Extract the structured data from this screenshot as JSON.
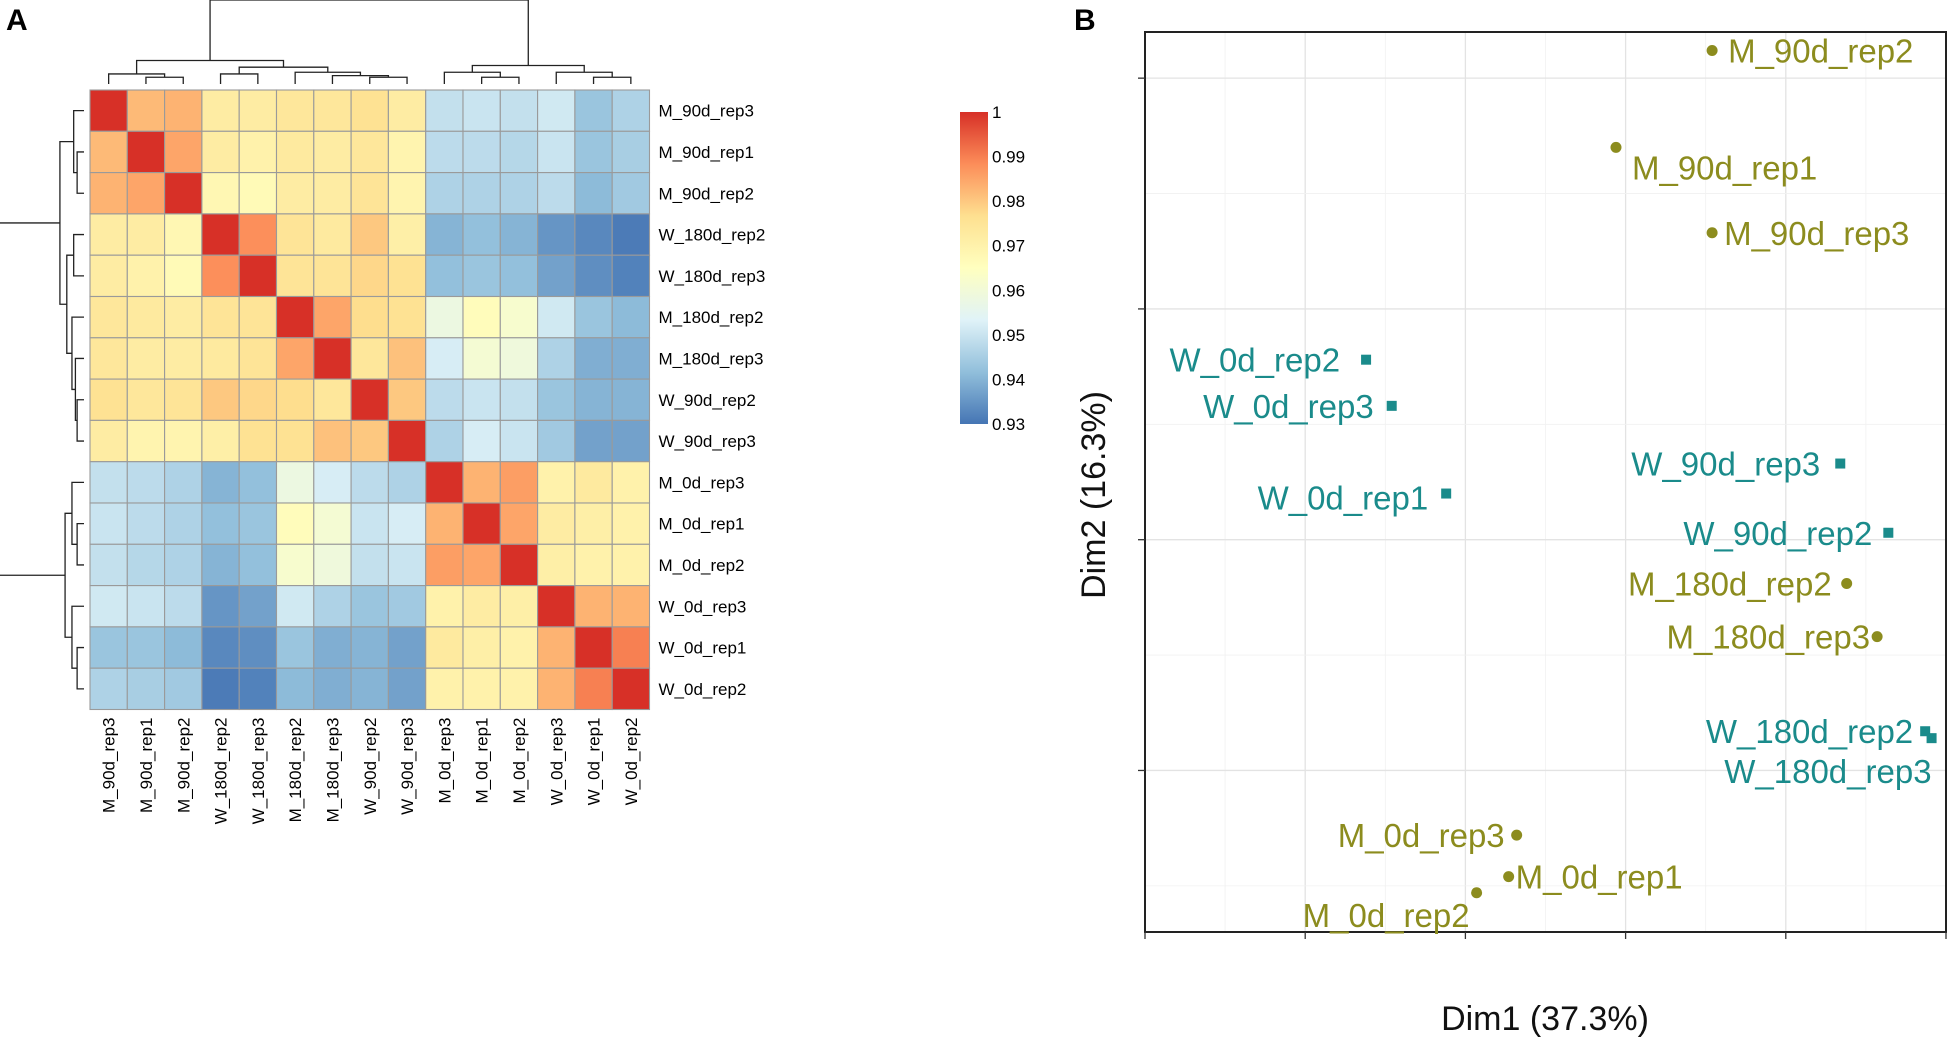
{
  "chart_data": [
    {
      "panel": "A",
      "type": "heatmap",
      "title": "",
      "row_labels": [
        "M_90d_rep3",
        "M_90d_rep1",
        "M_90d_rep2",
        "W_180d_rep2",
        "W_180d_rep3",
        "M_180d_rep2",
        "M_180d_rep3",
        "W_90d_rep2",
        "W_90d_rep3",
        "M_0d_rep3",
        "M_0d_rep1",
        "M_0d_rep2",
        "W_0d_rep3",
        "W_0d_rep1",
        "W_0d_rep2"
      ],
      "col_labels": [
        "M_90d_rep3",
        "M_90d_rep1",
        "M_90d_rep2",
        "W_180d_rep2",
        "W_180d_rep3",
        "M_180d_rep2",
        "M_180d_rep3",
        "W_90d_rep2",
        "W_90d_rep3",
        "M_0d_rep3",
        "M_0d_rep1",
        "M_0d_rep2",
        "W_0d_rep3",
        "W_0d_rep1",
        "W_0d_rep2"
      ],
      "values": [
        [
          1.0,
          0.982,
          0.983,
          0.972,
          0.972,
          0.974,
          0.974,
          0.976,
          0.972,
          0.949,
          0.95,
          0.949,
          0.951,
          0.943,
          0.946
        ],
        [
          0.982,
          1.0,
          0.985,
          0.972,
          0.97,
          0.973,
          0.972,
          0.974,
          0.969,
          0.948,
          0.948,
          0.947,
          0.95,
          0.943,
          0.945
        ],
        [
          0.983,
          0.985,
          1.0,
          0.968,
          0.967,
          0.972,
          0.972,
          0.975,
          0.969,
          0.946,
          0.946,
          0.946,
          0.948,
          0.941,
          0.944
        ],
        [
          0.972,
          0.972,
          0.968,
          1.0,
          0.988,
          0.975,
          0.973,
          0.98,
          0.971,
          0.94,
          0.942,
          0.94,
          0.935,
          0.933,
          0.931
        ],
        [
          0.972,
          0.97,
          0.967,
          0.988,
          1.0,
          0.975,
          0.975,
          0.978,
          0.976,
          0.942,
          0.943,
          0.942,
          0.937,
          0.934,
          0.932
        ],
        [
          0.974,
          0.973,
          0.972,
          0.975,
          0.975,
          1.0,
          0.985,
          0.977,
          0.976,
          0.958,
          0.966,
          0.962,
          0.951,
          0.943,
          0.941
        ],
        [
          0.974,
          0.972,
          0.972,
          0.973,
          0.975,
          0.985,
          1.0,
          0.974,
          0.981,
          0.952,
          0.961,
          0.959,
          0.946,
          0.939,
          0.939
        ],
        [
          0.976,
          0.974,
          0.975,
          0.98,
          0.978,
          0.977,
          0.974,
          1.0,
          0.98,
          0.948,
          0.95,
          0.949,
          0.943,
          0.94,
          0.94
        ],
        [
          0.972,
          0.969,
          0.969,
          0.971,
          0.976,
          0.976,
          0.981,
          0.98,
          1.0,
          0.946,
          0.952,
          0.95,
          0.944,
          0.937,
          0.937
        ],
        [
          0.949,
          0.948,
          0.946,
          0.94,
          0.942,
          0.958,
          0.952,
          0.948,
          0.946,
          1.0,
          0.983,
          0.986,
          0.97,
          0.973,
          0.97
        ],
        [
          0.95,
          0.948,
          0.946,
          0.942,
          0.943,
          0.966,
          0.961,
          0.95,
          0.952,
          0.983,
          1.0,
          0.985,
          0.972,
          0.971,
          0.97
        ],
        [
          0.949,
          0.947,
          0.946,
          0.94,
          0.942,
          0.962,
          0.959,
          0.949,
          0.95,
          0.986,
          0.985,
          1.0,
          0.971,
          0.97,
          0.97
        ],
        [
          0.951,
          0.95,
          0.948,
          0.935,
          0.937,
          0.951,
          0.946,
          0.943,
          0.944,
          0.97,
          0.972,
          0.971,
          1.0,
          0.983,
          0.983
        ],
        [
          0.943,
          0.943,
          0.941,
          0.933,
          0.934,
          0.943,
          0.939,
          0.94,
          0.937,
          0.973,
          0.971,
          0.97,
          0.983,
          1.0,
          0.99
        ],
        [
          0.946,
          0.945,
          0.944,
          0.931,
          0.932,
          0.941,
          0.939,
          0.94,
          0.937,
          0.97,
          0.97,
          0.97,
          0.983,
          0.99,
          1.0
        ]
      ],
      "colorbar": {
        "ticks": [
          "1",
          "0.99",
          "0.98",
          "0.97",
          "0.96",
          "0.95",
          "0.94",
          "0.93"
        ],
        "range": [
          0.93,
          1.0
        ],
        "colors": [
          "#4575b4",
          "#91bfdb",
          "#e0f3f8",
          "#ffffbf",
          "#fee090",
          "#fc8d59",
          "#d73027"
        ]
      },
      "col_dendrogram": "((((M_90d_rep3,(M_90d_rep1,M_90d_rep2)),((W_180d_rep2,W_180d_rep3),(M_180d_rep2,(M_180d_rep3,(W_90d_rep2,W_90d_rep3)))))),((M_0d_rep3,(M_0d_rep1,M_0d_rep2)),(W_0d_rep3,(W_0d_rep1,W_0d_rep2))))",
      "row_dendrogram": "same as columns"
    },
    {
      "panel": "B",
      "type": "scatter",
      "title": "",
      "xlabel": "Dim1 (37.3%)",
      "ylabel": "Dim2 (16.3%)",
      "xlim": [
        -10,
        40
      ],
      "ylim": [
        -17,
        22
      ],
      "grid": true,
      "groups": [
        {
          "name": "M",
          "marker": "circle",
          "color": "#8c8c1e"
        },
        {
          "name": "W",
          "marker": "square",
          "color": "#1a8b8b"
        }
      ],
      "points": [
        {
          "label": "M_90d_rep2",
          "group": "M",
          "x": 25.4,
          "y": 21.2
        },
        {
          "label": "M_90d_rep1",
          "group": "M",
          "x": 19.4,
          "y": 17.0
        },
        {
          "label": "M_90d_rep3",
          "group": "M",
          "x": 25.4,
          "y": 13.3
        },
        {
          "label": "W_0d_rep2",
          "group": "W",
          "x": 3.8,
          "y": 7.8
        },
        {
          "label": "W_0d_rep3",
          "group": "W",
          "x": 5.4,
          "y": 5.8
        },
        {
          "label": "W_0d_rep1",
          "group": "W",
          "x": 8.8,
          "y": 2.0
        },
        {
          "label": "W_90d_rep3",
          "group": "W",
          "x": 33.4,
          "y": 3.3
        },
        {
          "label": "W_90d_rep2",
          "group": "W",
          "x": 36.4,
          "y": 0.3
        },
        {
          "label": "M_180d_rep2",
          "group": "M",
          "x": 33.8,
          "y": -1.9
        },
        {
          "label": "M_180d_rep3",
          "group": "M",
          "x": 35.7,
          "y": -4.2
        },
        {
          "label": "W_180d_rep2",
          "group": "W",
          "x": 38.7,
          "y": -8.3
        },
        {
          "label": "W_180d_rep3",
          "group": "W",
          "x": 39.1,
          "y": -8.6
        },
        {
          "label": "M_0d_rep3",
          "group": "M",
          "x": 13.2,
          "y": -12.8
        },
        {
          "label": "M_0d_rep1",
          "group": "M",
          "x": 12.7,
          "y": -14.6
        },
        {
          "label": "M_0d_rep2",
          "group": "M",
          "x": 10.7,
          "y": -15.3
        }
      ]
    }
  ],
  "panel_labels": {
    "a": "A",
    "b": "B"
  }
}
